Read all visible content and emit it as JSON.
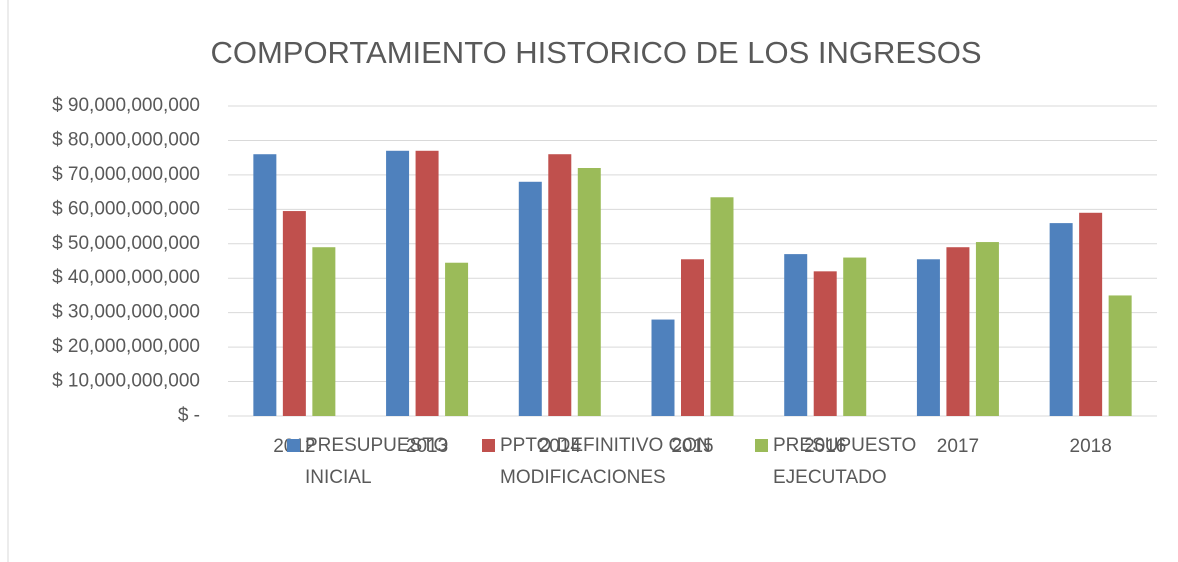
{
  "chart_data": {
    "type": "bar",
    "title": "COMPORTAMIENTO HISTORICO DE LOS INGRESOS",
    "categories": [
      "2012",
      "2013",
      "2014",
      "2015",
      "2016",
      "2017",
      "2018"
    ],
    "series": [
      {
        "name": "PRESUPUESTO INICIAL",
        "color": "#4f81bd",
        "values": [
          76000000000,
          77000000000,
          68000000000,
          28000000000,
          47000000000,
          45500000000,
          56000000000
        ]
      },
      {
        "name": "PPTO DEFINITIVO CON MODIFICACIONES",
        "color": "#c0504d",
        "values": [
          59500000000,
          77000000000,
          76000000000,
          45500000000,
          42000000000,
          49000000000,
          59000000000
        ]
      },
      {
        "name": "PRESUPUESTO EJECUTADO",
        "color": "#9bbb59",
        "values": [
          49000000000,
          44500000000,
          72000000000,
          63500000000,
          46000000000,
          50500000000,
          35000000000
        ]
      }
    ],
    "ylim": [
      0,
      90000000000
    ],
    "yticks": [
      {
        "value": 0,
        "label": "$ -"
      },
      {
        "value": 10000000000,
        "label": "$ 10,000,000,000"
      },
      {
        "value": 20000000000,
        "label": "$ 20,000,000,000"
      },
      {
        "value": 30000000000,
        "label": "$ 30,000,000,000"
      },
      {
        "value": 40000000000,
        "label": "$ 40,000,000,000"
      },
      {
        "value": 50000000000,
        "label": "$ 50,000,000,000"
      },
      {
        "value": 60000000000,
        "label": "$ 60,000,000,000"
      },
      {
        "value": 70000000000,
        "label": "$ 70,000,000,000"
      },
      {
        "value": 80000000000,
        "label": "$ 80,000,000,000"
      },
      {
        "value": 90000000000,
        "label": "$ 90,000,000,000"
      }
    ],
    "grid": true,
    "legend": "bottom"
  }
}
